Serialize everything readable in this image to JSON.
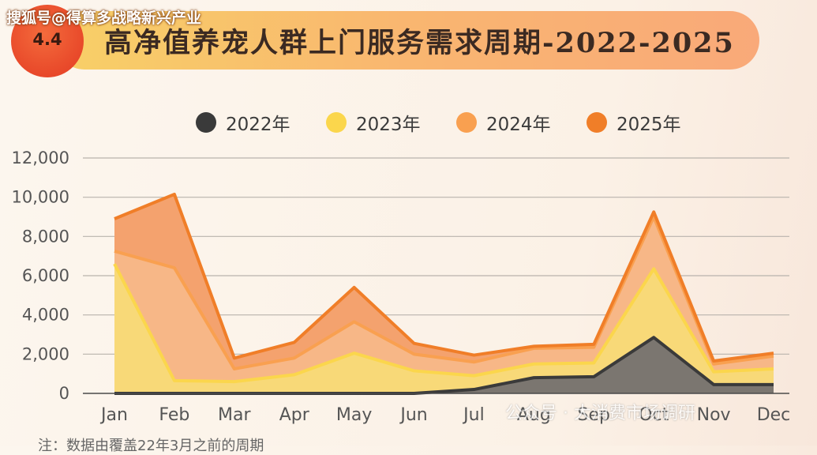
{
  "watermark_top": "搜狐号@得算多战略新兴产业",
  "badge": "4.4",
  "title": "高净值养宠人群上门服务需求周期-2022-2025",
  "watermark_bottom": "公众号 · 大消费市场调研",
  "footnote": "注：数据由覆盖22年3月之前的周期",
  "chart_data": {
    "type": "area",
    "stacked": true,
    "categories": [
      "Jan",
      "Feb",
      "Mar",
      "Apr",
      "May",
      "Jun",
      "Jul",
      "Aug",
      "Sep",
      "Oct",
      "Nov",
      "Dec"
    ],
    "ylim": [
      0,
      12000
    ],
    "yticks": [
      0,
      2000,
      4000,
      6000,
      8000,
      10000,
      12000
    ],
    "ytick_labels": [
      "0",
      "2,000",
      "4,000",
      "6,000",
      "8,000",
      "10,000",
      "12,000"
    ],
    "grid": true,
    "legend_position": "top",
    "series": [
      {
        "name": "2022年",
        "color": "#3a3a3a",
        "fill": "#7b7670",
        "values": [
          0,
          0,
          0,
          0,
          0,
          0,
          200,
          800,
          850,
          2850,
          450,
          450
        ]
      },
      {
        "name": "2023年",
        "color": "#fbd64c",
        "fill": "#f8d978",
        "values": [
          6600,
          650,
          600,
          950,
          2050,
          1150,
          700,
          700,
          700,
          3500,
          650,
          800
        ]
      },
      {
        "name": "2024年",
        "color": "#f9a050",
        "fill": "#f7b787",
        "values": [
          650,
          5750,
          650,
          850,
          1600,
          850,
          700,
          800,
          800,
          2650,
          400,
          650
        ]
      },
      {
        "name": "2025年",
        "color": "#f07e28",
        "fill": "#f4a26e",
        "values": [
          1650,
          3750,
          550,
          800,
          1750,
          550,
          350,
          100,
          150,
          250,
          150,
          150
        ]
      }
    ]
  }
}
